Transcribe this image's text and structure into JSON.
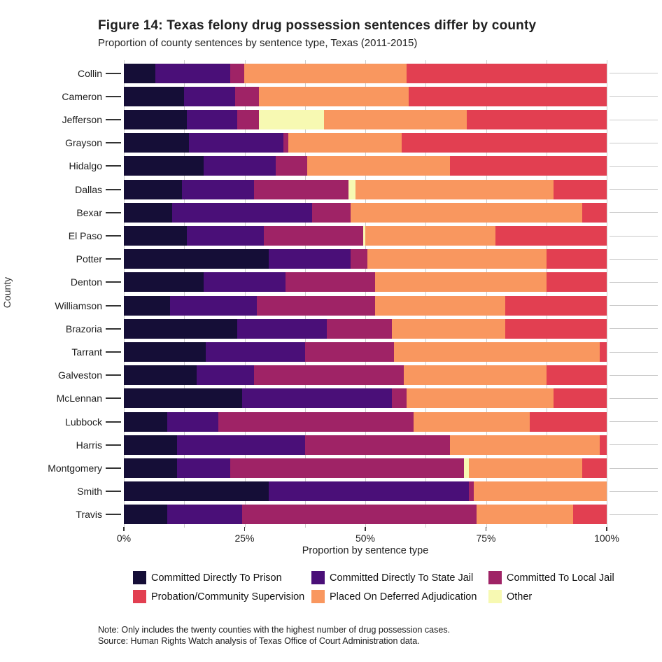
{
  "title": "Figure 14: Texas felony drug possession sentences differ by county",
  "subtitle": "Proportion of county sentences by sentence type, Texas (2011-2015)",
  "note": "Note: Only includes the twenty counties with the highest number of drug possession cases.",
  "source": "Source: Human Rights Watch analysis of Texas Office of Court Administration data.",
  "chart_data": {
    "type": "bar",
    "orientation": "horizontal",
    "stacked": true,
    "xlabel": "Proportion by sentence type",
    "ylabel": "County",
    "xlim": [
      0,
      100
    ],
    "x_ticks": [
      "0%",
      "25%",
      "50%",
      "75%",
      "100%"
    ],
    "grid": true,
    "legend_position": "bottom",
    "units": "percent",
    "categories": [
      "Collin",
      "Cameron",
      "Jefferson",
      "Grayson",
      "Hidalgo",
      "Dallas",
      "Bexar",
      "El Paso",
      "Potter",
      "Denton",
      "Williamson",
      "Brazoria",
      "Tarrant",
      "Galveston",
      "McLennan",
      "Lubbock",
      "Harris",
      "Montgomery",
      "Smith",
      "Travis"
    ],
    "series": [
      {
        "name": "Committed Directly To Prison",
        "color": "#150e37",
        "values": [
          6.5,
          12.5,
          13,
          13.5,
          16.5,
          12,
          10,
          13,
          30,
          16.5,
          9.5,
          23.5,
          17,
          15,
          24.5,
          9,
          11,
          11,
          30,
          9
        ]
      },
      {
        "name": "Committed Directly To State Jail",
        "color": "#4a0f78",
        "values": [
          15.5,
          10.5,
          10.5,
          19.5,
          15,
          15,
          29,
          16,
          17,
          17,
          18,
          18.5,
          20.5,
          12,
          31,
          10.5,
          26.5,
          11,
          41.5,
          15.5
        ]
      },
      {
        "name": "Committed To Local Jail",
        "color": "#9f2366",
        "values": [
          3,
          5,
          4.5,
          1,
          6.5,
          19.5,
          8,
          20.5,
          3.5,
          18.5,
          24.5,
          13.5,
          18.5,
          31,
          3,
          40.5,
          30,
          48.5,
          1,
          48.5
        ]
      },
      {
        "name": "Other",
        "color": "#f7f9b2",
        "values": [
          0,
          0,
          13.5,
          0,
          0,
          1.5,
          0,
          0.5,
          0,
          0,
          0,
          0,
          0,
          0,
          0,
          0,
          0,
          1,
          0,
          0
        ]
      },
      {
        "name": "Placed On Deferred Adjudication",
        "color": "#f9975f",
        "values": [
          33.5,
          31,
          29.5,
          23.5,
          29.5,
          41,
          48,
          27,
          37,
          35.5,
          27,
          23.5,
          42.5,
          29.5,
          30.5,
          24,
          31,
          23.5,
          27.5,
          20
        ]
      },
      {
        "name": "Probation/Community Supervision",
        "color": "#e23f51",
        "values": [
          41.5,
          41,
          29,
          42.5,
          32.5,
          11,
          5,
          23,
          12.5,
          12.5,
          21,
          21,
          1.5,
          12.5,
          11,
          16,
          1.5,
          5,
          0,
          7
        ]
      }
    ],
    "legend": [
      "Committed Directly To Prison",
      "Committed Directly To State Jail",
      "Committed To Local Jail",
      "Probation/Community Supervision",
      "Placed On Deferred Adjudication",
      "Other"
    ]
  }
}
